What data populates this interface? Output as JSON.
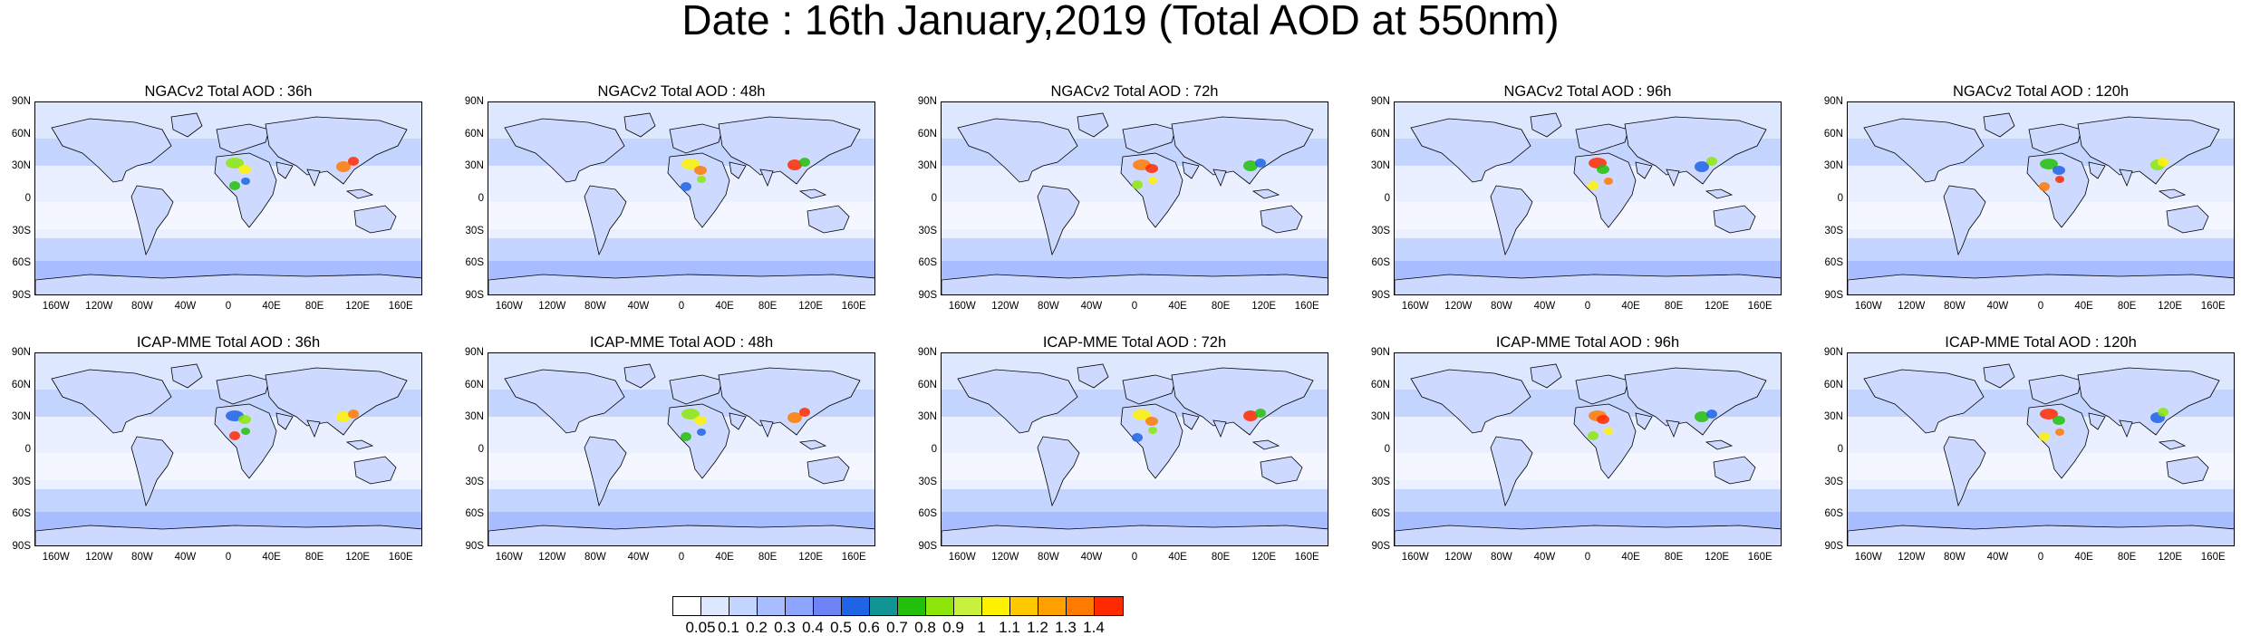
{
  "title": "Date : 16th January,2019 (Total AOD at 550nm)",
  "lat_labels": [
    "90N",
    "60N",
    "30N",
    "0",
    "30S",
    "60S",
    "90S"
  ],
  "lon_labels": [
    "160W",
    "120W",
    "80W",
    "40W",
    "0",
    "40E",
    "80E",
    "120E",
    "160E"
  ],
  "panels": [
    {
      "title": "NGACv2 Total AOD : 36h"
    },
    {
      "title": "NGACv2 Total AOD : 48h"
    },
    {
      "title": "NGACv2 Total AOD : 72h"
    },
    {
      "title": "NGACv2 Total AOD : 96h"
    },
    {
      "title": "NGACv2 Total AOD : 120h"
    },
    {
      "title": "ICAP-MME Total AOD : 36h"
    },
    {
      "title": "ICAP-MME Total AOD : 48h"
    },
    {
      "title": "ICAP-MME Total AOD : 72h"
    },
    {
      "title": "ICAP-MME Total AOD : 96h"
    },
    {
      "title": "ICAP-MME Total AOD : 120h"
    }
  ],
  "colorbar": {
    "labels": [
      "0.05",
      "0.1",
      "0.2",
      "0.3",
      "0.4",
      "0.5",
      "0.6",
      "0.7",
      "0.8",
      "0.9",
      "1",
      "1.1",
      "1.2",
      "1.3",
      "1.4"
    ],
    "colors": [
      "#ffffff",
      "#dde8ff",
      "#c3d4ff",
      "#a7bdff",
      "#8ea5ff",
      "#6e82f5",
      "#1f63e6",
      "#109494",
      "#22c00a",
      "#8ce60a",
      "#c8f03c",
      "#fff200",
      "#ffc800",
      "#ffa000",
      "#ff7a00",
      "#ff2a00"
    ]
  }
}
